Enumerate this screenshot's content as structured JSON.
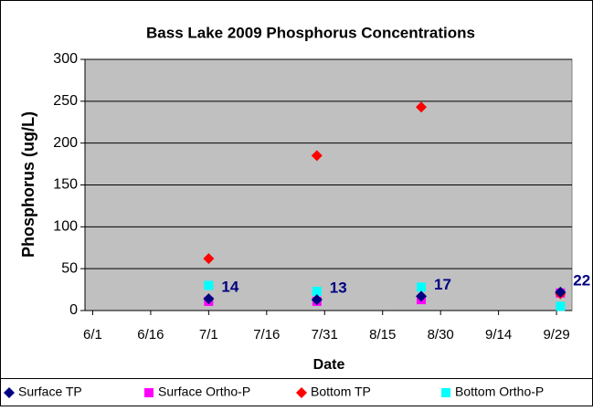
{
  "chart_data": {
    "type": "scatter",
    "title": "Bass Lake 2009 Phosphorus Concentrations",
    "x_label": "Date",
    "y_label": "Phosphorus (ug/L)",
    "x": [
      "7/1",
      "7/29",
      "8/25",
      "9/30"
    ],
    "xlim": [
      "5/30",
      "10/3"
    ],
    "xticks": [
      "6/1",
      "6/16",
      "7/1",
      "7/16",
      "7/31",
      "8/15",
      "8/30",
      "9/14",
      "9/29"
    ],
    "ylim": [
      0,
      300
    ],
    "yticks": [
      0,
      50,
      100,
      150,
      200,
      250,
      300
    ],
    "grid": true,
    "legend": "bottom",
    "series": [
      {
        "name": "Surface TP",
        "color": "#000080",
        "marker": "diamond",
        "values": [
          14,
          13,
          17,
          22
        ],
        "data_labels": true
      },
      {
        "name": "Surface Ortho-P",
        "color": "#ff00ff",
        "marker": "square",
        "values": [
          11,
          11,
          13,
          21
        ]
      },
      {
        "name": "Bottom TP",
        "color": "#ff0000",
        "marker": "diamond",
        "values": [
          62,
          185,
          243,
          20
        ]
      },
      {
        "name": "Bottom Ortho-P",
        "color": "#00ffff",
        "marker": "square",
        "values": [
          30,
          23,
          28,
          5
        ]
      }
    ]
  }
}
